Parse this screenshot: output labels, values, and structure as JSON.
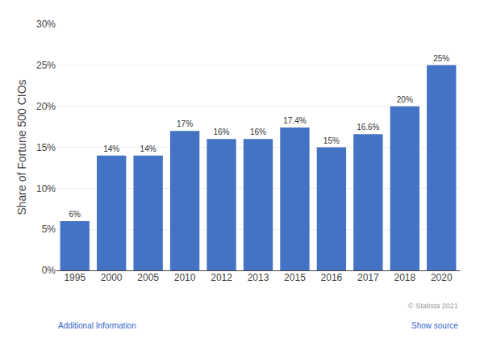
{
  "chart_data": {
    "type": "bar",
    "categories": [
      "1995",
      "2000",
      "2005",
      "2010",
      "2012",
      "2013",
      "2015",
      "2016",
      "2017",
      "2018",
      "2020"
    ],
    "values": [
      6,
      14,
      14,
      17,
      16,
      16,
      17.4,
      15,
      16.6,
      20,
      25
    ],
    "value_labels": [
      "6%",
      "14%",
      "14%",
      "17%",
      "16%",
      "16%",
      "17.4%",
      "15%",
      "16.6%",
      "20%",
      "25%"
    ],
    "data_labels": true,
    "color": "#4472C4",
    "ylabel": "Share of Fortune 500 CIOs",
    "ylim": [
      0,
      30
    ],
    "yticks": [
      {
        "value": 0,
        "label": "0%"
      },
      {
        "value": 5,
        "label": "5%"
      },
      {
        "value": 10,
        "label": "10%"
      },
      {
        "value": 15,
        "label": "15%"
      },
      {
        "value": 20,
        "label": "20%"
      },
      {
        "value": 25,
        "label": "25%"
      },
      {
        "value": 30,
        "label": "30%"
      }
    ],
    "grid": true,
    "annotations": [
      "© Statista 2021",
      "Additional Information",
      "Show source"
    ]
  }
}
